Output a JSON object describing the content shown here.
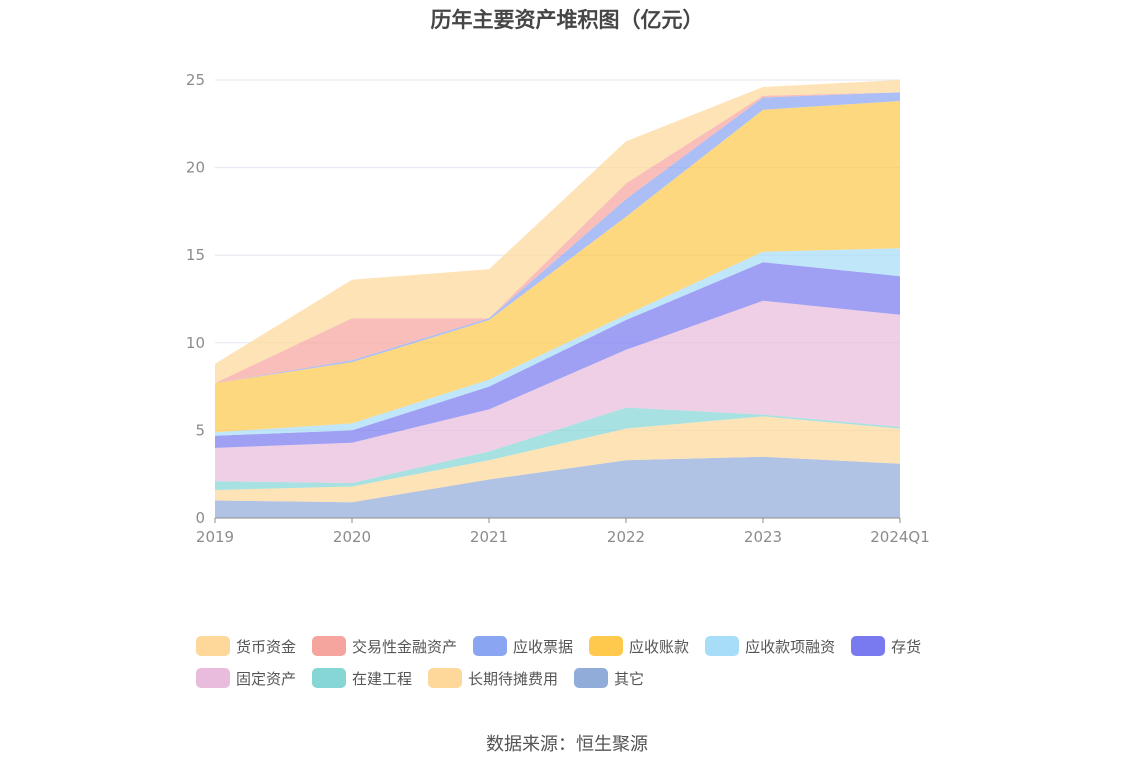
{
  "title": "历年主要资产堆积图（亿元）",
  "source": "数据来源：恒生聚源",
  "chart_data": {
    "type": "area",
    "stacked": true,
    "title": "历年主要资产堆积图（亿元）",
    "x": [
      "2019",
      "2020",
      "2021",
      "2022",
      "2023",
      "2024Q1"
    ],
    "ylim": [
      0,
      25
    ],
    "yticks": [
      0,
      5,
      10,
      15,
      20,
      25
    ],
    "grid": true,
    "legend_position": "bottom",
    "series": [
      {
        "name": "其它",
        "color": "#91acd9",
        "values": [
          1.0,
          0.9,
          2.2,
          3.3,
          3.5,
          3.1
        ]
      },
      {
        "name": "长期待摊费用",
        "color": "#fdd89a",
        "values": [
          0.6,
          0.9,
          1.1,
          1.8,
          2.3,
          2.0
        ]
      },
      {
        "name": "在建工程",
        "color": "#86d6d6",
        "values": [
          0.5,
          0.2,
          0.5,
          1.2,
          0.1,
          0.1
        ]
      },
      {
        "name": "固定资产",
        "color": "#e9bcdd",
        "values": [
          1.9,
          2.3,
          2.4,
          3.3,
          6.5,
          6.4
        ]
      },
      {
        "name": "存货",
        "color": "#7a7af0",
        "values": [
          0.7,
          0.7,
          1.3,
          1.7,
          2.2,
          2.2
        ]
      },
      {
        "name": "应收款项融资",
        "color": "#a7ddf6",
        "values": [
          0.2,
          0.4,
          0.4,
          0.3,
          0.6,
          1.6
        ]
      },
      {
        "name": "应收账款",
        "color": "#fec94d",
        "values": [
          2.8,
          3.5,
          3.4,
          5.6,
          8.1,
          8.4
        ]
      },
      {
        "name": "应收票据",
        "color": "#8aa6f2",
        "values": [
          0.0,
          0.1,
          0.1,
          1.0,
          0.7,
          0.5
        ]
      },
      {
        "name": "交易性金融资产",
        "color": "#f6a59e",
        "values": [
          0.0,
          2.4,
          0.0,
          0.9,
          0.1,
          0.0
        ]
      },
      {
        "name": "货币资金",
        "color": "#fdd89a",
        "values": [
          1.1,
          2.2,
          2.8,
          2.4,
          0.5,
          0.7
        ]
      }
    ],
    "legend_order": [
      "货币资金",
      "交易性金融资产",
      "应收票据",
      "应收账款",
      "应收款项融资",
      "存货",
      "固定资产",
      "在建工程",
      "长期待摊费用",
      "其它"
    ]
  }
}
